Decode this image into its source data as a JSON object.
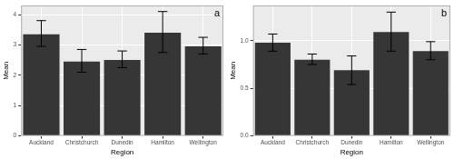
{
  "chart_data": [
    {
      "type": "bar",
      "title": "a",
      "x_label": "Region",
      "y_label": "Mean",
      "categories": [
        "Auckland",
        "Christchurch",
        "Dunedin",
        "Hamilton",
        "Wellington"
      ],
      "values": [
        3.35,
        2.45,
        2.5,
        3.4,
        2.95
      ],
      "error_low": [
        2.95,
        2.1,
        2.25,
        2.75,
        2.7
      ],
      "error_high": [
        3.8,
        2.85,
        2.8,
        4.1,
        3.25
      ],
      "color": "#363636",
      "ylim": [
        0,
        4.3
      ],
      "yticks": [
        0,
        1,
        2,
        3,
        4
      ],
      "grid": true
    },
    {
      "type": "bar",
      "title": "b",
      "x_label": "Region",
      "y_label": "Mean",
      "categories": [
        "Auckland",
        "Christchurch",
        "Dunedin",
        "Hamilton",
        "Wellington"
      ],
      "values": [
        0.98,
        0.8,
        0.69,
        1.09,
        0.89
      ],
      "error_low": [
        0.89,
        0.75,
        0.54,
        0.89,
        0.8
      ],
      "error_high": [
        1.07,
        0.86,
        0.84,
        1.3,
        0.99
      ],
      "color": "#363636",
      "ylim": [
        0,
        1.37
      ],
      "yticks": [
        {
          "value": 0,
          "label": "0.0"
        },
        {
          "value": 0.5,
          "label": "0.5"
        },
        {
          "value": 1,
          "label": "1.0"
        }
      ],
      "grid": true
    }
  ]
}
